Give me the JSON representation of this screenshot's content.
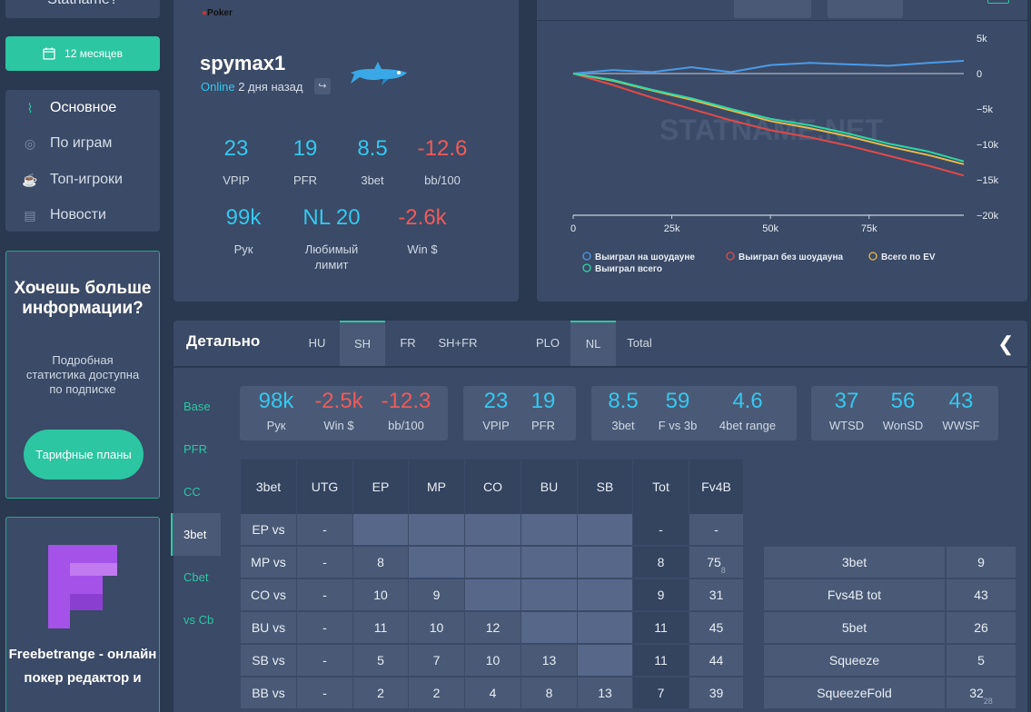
{
  "sidebar": {
    "top_name": "Statname?",
    "period_label": "12 месяцев",
    "nav": [
      {
        "label": "Основное",
        "icon": "pulse-icon"
      },
      {
        "label": "По играм",
        "icon": "cards-icon"
      },
      {
        "label": "Топ-игроки",
        "icon": "trophy-icon"
      },
      {
        "label": "Новости",
        "icon": "news-icon"
      }
    ],
    "promo": {
      "title": "Хочешь больше информации?",
      "text": "Подробная статистика доступна по подписке",
      "button": "Тарифные планы"
    },
    "ad": {
      "text": "Freebetrange - онлайн покер редактор и"
    }
  },
  "profile": {
    "room": "Poker",
    "name": "spymax1",
    "status_online": "Online",
    "status_ago": "2 дня назад",
    "stats": [
      {
        "value": "23",
        "label": "VPIP",
        "color": "#35c7ef"
      },
      {
        "value": "19",
        "label": "PFR",
        "color": "#35c7ef"
      },
      {
        "value": "8.5",
        "label": "3bet",
        "color": "#35c7ef"
      },
      {
        "value": "-12.6",
        "label": "bb/100",
        "color": "#ef5a5a"
      },
      {
        "value": "99k",
        "label": "Рук",
        "color": "#35c7ef"
      },
      {
        "value": "NL 20",
        "label": "Любимый лимит",
        "color": "#35c7ef"
      },
      {
        "value": "-2.6k",
        "label": "Win $",
        "color": "#ef5a5a"
      }
    ]
  },
  "chart_data": {
    "type": "line",
    "watermark": "STATNAME.NET",
    "x_ticks": [
      "0",
      "25k",
      "50k",
      "75k"
    ],
    "y_ticks": [
      "5k",
      "0",
      "−5k",
      "−10k",
      "−15k",
      "−20k"
    ],
    "xlim": [
      0,
      99000
    ],
    "ylim": [
      -20000,
      5000
    ],
    "series": [
      {
        "name": "Выиграл на шоудауне",
        "color": "#4a9be8",
        "x": [
          0,
          10000,
          20000,
          30000,
          40000,
          50000,
          60000,
          70000,
          80000,
          90000,
          99000
        ],
        "y": [
          0,
          500,
          200,
          900,
          200,
          1200,
          1500,
          1300,
          1100,
          1500,
          1800
        ]
      },
      {
        "name": "Выиграл без шоудауна",
        "color": "#e04a4a",
        "x": [
          0,
          10000,
          20000,
          30000,
          40000,
          50000,
          60000,
          70000,
          80000,
          90000,
          99000
        ],
        "y": [
          0,
          -1600,
          -3400,
          -5000,
          -6600,
          -8000,
          -9000,
          -10200,
          -11600,
          -13000,
          -14400
        ]
      },
      {
        "name": "Всего по EV",
        "color": "#e8b84a",
        "x": [
          0,
          10000,
          20000,
          30000,
          40000,
          50000,
          60000,
          70000,
          80000,
          90000,
          99000
        ],
        "y": [
          0,
          -1000,
          -2400,
          -3700,
          -5200,
          -6700,
          -7700,
          -8900,
          -10300,
          -11500,
          -12800
        ]
      },
      {
        "name": "Выиграл всего",
        "color": "#2cd8a4",
        "x": [
          0,
          10000,
          20000,
          30000,
          40000,
          50000,
          60000,
          70000,
          80000,
          90000,
          99000
        ],
        "y": [
          0,
          -900,
          -2300,
          -3500,
          -5000,
          -6400,
          -7300,
          -8500,
          -9900,
          -11000,
          -12400
        ]
      }
    ]
  },
  "details": {
    "title": "Детально",
    "format_tabs": [
      "HU",
      "SH",
      "FR",
      "SH+FR"
    ],
    "game_tabs": [
      "PLO",
      "NL",
      "Total"
    ],
    "side_tabs": [
      "Base",
      "PFR",
      "CC",
      "3bet",
      "Cbet",
      "vs Cb"
    ],
    "summary": [
      {
        "value": "98k",
        "label": "Рук",
        "color": "#35c7ef"
      },
      {
        "value": "-2.5k",
        "label": "Win $",
        "color": "#ef5a5a"
      },
      {
        "value": "-12.3",
        "label": "bb/100",
        "color": "#ef5a5a"
      },
      {
        "value": "23",
        "label": "VPIP",
        "color": "#35c7ef"
      },
      {
        "value": "19",
        "label": "PFR",
        "color": "#35c7ef"
      },
      {
        "value": "8.5",
        "label": "3bet",
        "color": "#35c7ef"
      },
      {
        "value": "59",
        "label": "F vs 3b",
        "color": "#35c7ef"
      },
      {
        "value": "4.6",
        "label": "4bet range",
        "color": "#35c7ef"
      },
      {
        "value": "37",
        "label": "WTSD",
        "color": "#35c7ef"
      },
      {
        "value": "56",
        "label": "WonSD",
        "color": "#35c7ef"
      },
      {
        "value": "43",
        "label": "WWSF",
        "color": "#35c7ef"
      }
    ],
    "matrix": {
      "headers": [
        "3bet",
        "UTG",
        "EP",
        "MP",
        "CO",
        "BU",
        "SB",
        "Tot",
        "Fv4B"
      ],
      "rows": [
        {
          "label": "EP vs",
          "cells": [
            "-",
            "",
            "",
            "",
            "",
            "",
            "-",
            "-"
          ],
          "sub": ""
        },
        {
          "label": "MP vs",
          "cells": [
            "-",
            "8",
            "",
            "",
            "",
            "",
            "8",
            "75"
          ],
          "sub": "8"
        },
        {
          "label": "CO vs",
          "cells": [
            "-",
            "10",
            "9",
            "",
            "",
            "",
            "9",
            "31"
          ],
          "sub": ""
        },
        {
          "label": "BU vs",
          "cells": [
            "-",
            "11",
            "10",
            "12",
            "",
            "",
            "11",
            "45"
          ],
          "sub": ""
        },
        {
          "label": "SB vs",
          "cells": [
            "-",
            "5",
            "7",
            "10",
            "13",
            "",
            "11",
            "44"
          ],
          "sub": ""
        },
        {
          "label": "BB vs",
          "cells": [
            "-",
            "2",
            "2",
            "4",
            "8",
            "13",
            "7",
            "39"
          ],
          "sub": ""
        }
      ]
    },
    "side_table": [
      {
        "label": "3bet",
        "value": "9",
        "sub": ""
      },
      {
        "label": "Fvs4B tot",
        "value": "43",
        "sub": ""
      },
      {
        "label": "5bet",
        "value": "26",
        "sub": ""
      },
      {
        "label": "Squeeze",
        "value": "5",
        "sub": ""
      },
      {
        "label": "SqueezeFold",
        "value": "32",
        "sub": "28"
      }
    ]
  }
}
